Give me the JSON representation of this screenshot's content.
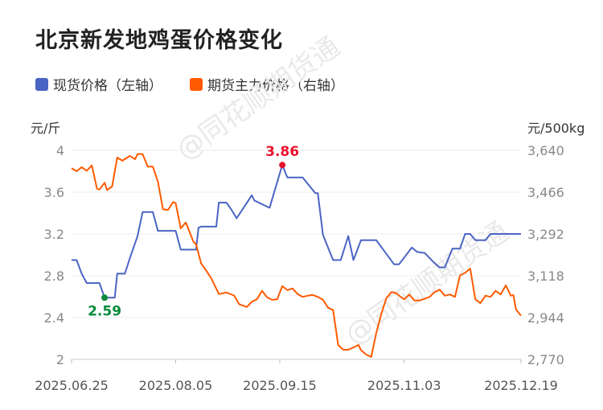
{
  "title": "北京新发地鸡蛋价格变化",
  "watermark": "@同花顺期货通",
  "legend": [
    {
      "name": "现货价格（左轴）",
      "color": "#4a64c4"
    },
    {
      "name": "期货主力价格（右轴）",
      "color": "#ff5a00"
    }
  ],
  "chart_data": {
    "type": "line",
    "title": "北京新发地鸡蛋价格变化",
    "y_left": {
      "label": "元/斤",
      "min": 2,
      "max": 4,
      "ticks": [
        "2",
        "2.4",
        "2.8",
        "3.2",
        "3.6",
        "4"
      ]
    },
    "y_right": {
      "label": "元/500kg",
      "min": 2770,
      "max": 3640,
      "ticks": [
        "2,770",
        "2,944",
        "3,118",
        "3,292",
        "3,466",
        "3,640"
      ]
    },
    "x_ticks": [
      "2025.06.25",
      "2025.08.05",
      "2025.09.15",
      "2025.11.03",
      "2025.12.19"
    ],
    "x_range": [
      "2025-06-25",
      "2025-12-19"
    ],
    "grid": "horizontal",
    "annotations": [
      {
        "label": "3.86",
        "x": "2025-09-16",
        "y": 3.86,
        "series": "现货价格（左轴）",
        "color": "#e8112d"
      },
      {
        "label": "2.59",
        "x": "2025-07-08",
        "y": 2.59,
        "series": "现货价格（左轴）",
        "color": "#0a8a3a"
      }
    ],
    "series": [
      {
        "name": "现货价格（左轴）",
        "axis": "left",
        "color": "#4a64c4",
        "x": [
          "2025-06-25",
          "2025-06-27",
          "2025-06-29",
          "2025-07-01",
          "2025-07-06",
          "2025-07-08",
          "2025-07-12",
          "2025-07-13",
          "2025-07-16",
          "2025-07-18",
          "2025-07-21",
          "2025-07-23",
          "2025-07-27",
          "2025-07-29",
          "2025-08-05",
          "2025-08-07",
          "2025-08-13",
          "2025-08-14",
          "2025-08-15",
          "2025-08-21",
          "2025-08-22",
          "2025-08-25",
          "2025-08-27",
          "2025-08-29",
          "2025-09-04",
          "2025-09-05",
          "2025-09-11",
          "2025-09-16",
          "2025-09-18",
          "2025-09-20",
          "2025-09-24",
          "2025-09-26",
          "2025-09-29",
          "2025-09-30",
          "2025-10-02",
          "2025-10-06",
          "2025-10-09",
          "2025-10-12",
          "2025-10-14",
          "2025-10-17",
          "2025-10-20",
          "2025-10-23",
          "2025-10-30",
          "2025-10-31",
          "2025-11-01",
          "2025-11-06",
          "2025-11-08",
          "2025-11-10",
          "2025-11-11",
          "2025-11-15",
          "2025-11-17",
          "2025-11-19",
          "2025-11-22",
          "2025-11-23",
          "2025-11-25",
          "2025-11-27",
          "2025-11-29",
          "2025-12-01",
          "2025-12-05",
          "2025-12-07",
          "2025-12-10",
          "2025-12-12",
          "2025-12-19"
        ],
        "values": [
          2.95,
          2.95,
          2.82,
          2.73,
          2.73,
          2.59,
          2.59,
          2.82,
          2.82,
          2.97,
          3.18,
          3.41,
          3.41,
          3.23,
          3.23,
          3.05,
          3.05,
          3.26,
          3.27,
          3.27,
          3.5,
          3.5,
          3.43,
          3.35,
          3.57,
          3.52,
          3.45,
          3.86,
          3.74,
          3.74,
          3.74,
          3.68,
          3.59,
          3.59,
          3.19,
          2.95,
          2.95,
          3.18,
          2.95,
          3.14,
          3.14,
          3.14,
          2.91,
          2.91,
          2.91,
          3.07,
          3.03,
          3.02,
          3.02,
          2.92,
          2.88,
          2.88,
          3.06,
          3.06,
          3.06,
          3.2,
          3.2,
          3.14,
          3.14,
          3.2,
          3.2,
          3.2,
          3.2
        ]
      },
      {
        "name": "期货主力价格（右轴）",
        "axis": "right",
        "color": "#ff5a00",
        "x": [
          "2025-06-25",
          "2025-06-27",
          "2025-06-29",
          "2025-07-01",
          "2025-07-03",
          "2025-07-05",
          "2025-07-06",
          "2025-07-08",
          "2025-07-09",
          "2025-07-11",
          "2025-07-13",
          "2025-07-15",
          "2025-07-18",
          "2025-07-20",
          "2025-07-21",
          "2025-07-23",
          "2025-07-25",
          "2025-07-27",
          "2025-07-29",
          "2025-07-31",
          "2025-08-02",
          "2025-08-04",
          "2025-08-05",
          "2025-08-07",
          "2025-08-09",
          "2025-08-12",
          "2025-08-13",
          "2025-08-15",
          "2025-08-17",
          "2025-08-19",
          "2025-08-22",
          "2025-08-25",
          "2025-08-28",
          "2025-08-30",
          "2025-09-02",
          "2025-09-04",
          "2025-09-06",
          "2025-09-08",
          "2025-09-10",
          "2025-09-12",
          "2025-09-14",
          "2025-09-16",
          "2025-09-18",
          "2025-09-20",
          "2025-09-22",
          "2025-09-24",
          "2025-09-26",
          "2025-09-28",
          "2025-09-30",
          "2025-10-02",
          "2025-10-04",
          "2025-10-06",
          "2025-10-08",
          "2025-10-10",
          "2025-10-12",
          "2025-10-14",
          "2025-10-16",
          "2025-10-17",
          "2025-10-19",
          "2025-10-21",
          "2025-10-23",
          "2025-10-25",
          "2025-10-27",
          "2025-10-29",
          "2025-10-31",
          "2025-11-01",
          "2025-11-03",
          "2025-11-05",
          "2025-11-07",
          "2025-11-09",
          "2025-11-11",
          "2025-11-13",
          "2025-11-15",
          "2025-11-17",
          "2025-11-19",
          "2025-11-21",
          "2025-11-23",
          "2025-11-25",
          "2025-11-27",
          "2025-11-29",
          "2025-12-01",
          "2025-12-03",
          "2025-12-05",
          "2025-12-07",
          "2025-12-09",
          "2025-12-11",
          "2025-12-13",
          "2025-12-15",
          "2025-12-16",
          "2025-12-17",
          "2025-12-19"
        ],
        "values": [
          3566,
          3553,
          3570,
          3555,
          3577,
          3480,
          3477,
          3505,
          3475,
          3490,
          3610,
          3597,
          3617,
          3603,
          3625,
          3624,
          3572,
          3572,
          3510,
          3395,
          3392,
          3425,
          3420,
          3315,
          3340,
          3260,
          3250,
          3170,
          3140,
          3108,
          3042,
          3048,
          3036,
          3000,
          2988,
          3010,
          3020,
          3055,
          3028,
          3018,
          3020,
          3075,
          3058,
          3065,
          3042,
          3030,
          3035,
          3038,
          3030,
          3018,
          2985,
          2975,
          2830,
          2810,
          2810,
          2820,
          2830,
          2808,
          2790,
          2780,
          2880,
          2960,
          3025,
          3050,
          3045,
          3035,
          3020,
          3040,
          3015,
          3015,
          3022,
          3030,
          3050,
          3060,
          3035,
          3040,
          3030,
          3120,
          3130,
          3148,
          3020,
          3004,
          3035,
          3030,
          3055,
          3040,
          3078,
          3035,
          3038,
          2978,
          2952
        ]
      }
    ]
  }
}
